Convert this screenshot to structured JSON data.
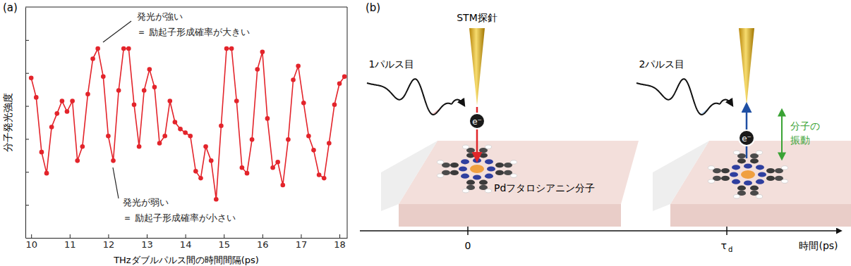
{
  "chart_data": {
    "type": "line",
    "panel_label": "(a)",
    "xlabel": "THzダブルパルス間の時間間隔(ps)",
    "ylabel": "分子発光強度",
    "x": [
      10.0,
      10.13,
      10.27,
      10.4,
      10.53,
      10.67,
      10.8,
      10.93,
      11.07,
      11.2,
      11.33,
      11.47,
      11.6,
      11.73,
      11.87,
      12.0,
      12.13,
      12.27,
      12.4,
      12.53,
      12.67,
      12.8,
      12.93,
      13.07,
      13.2,
      13.33,
      13.47,
      13.6,
      13.73,
      13.87,
      14.0,
      14.13,
      14.27,
      14.4,
      14.53,
      14.67,
      14.8,
      14.93,
      15.07,
      15.2,
      15.33,
      15.47,
      15.6,
      15.73,
      15.87,
      16.0,
      16.13,
      16.27,
      16.4,
      16.53,
      16.67,
      16.8,
      16.93,
      17.07,
      17.2,
      17.33,
      17.47,
      17.6,
      17.73,
      17.87,
      18.0,
      18.13
    ],
    "values": [
      4.85,
      4.26,
      2.6,
      1.96,
      3.36,
      3.77,
      4.15,
      3.83,
      4.15,
      2.34,
      2.77,
      4.36,
      5.43,
      5.74,
      4.89,
      3.09,
      2.34,
      4.47,
      5.74,
      5.74,
      4.04,
      2.77,
      4.47,
      5.11,
      4.57,
      2.87,
      3.09,
      4.15,
      3.51,
      3.3,
      3.19,
      3.09,
      2.02,
      1.81,
      2.77,
      2.34,
      1.17,
      3.4,
      5.74,
      5.74,
      4.15,
      2.13,
      1.96,
      2.98,
      5.11,
      5.64,
      3.62,
      2.13,
      2.3,
      1.6,
      2.98,
      4.79,
      5.21,
      4.09,
      3.09,
      2.66,
      1.91,
      1.81,
      2.87,
      4.04,
      4.68,
      4.89
    ],
    "color": "#e3242b",
    "marker": "circle",
    "line_style": "solid",
    "xlim": [
      9.85,
      18.2
    ],
    "xticks": [
      10,
      11,
      12,
      13,
      14,
      15,
      16,
      17,
      18
    ],
    "ylim": [
      0,
      7
    ],
    "yticks": [
      1,
      2,
      3,
      4,
      5,
      6
    ],
    "tick_labels": "x",
    "annotations": [
      {
        "lines": [
          "発光が強い",
          "＝ 励起子形成確率が大きい"
        ]
      },
      {
        "lines": [
          "発光が弱い",
          "＝ 励起子形成確率が小さい"
        ]
      }
    ]
  },
  "diagram": {
    "panel_label": "(b)",
    "tip_label": "STM探針",
    "pulses": [
      "1パルス目",
      "2パルス目"
    ],
    "molecule_label": "Pdフタロシアニン分子",
    "electron_label": "e⁻",
    "vibration_label": [
      "分子の",
      "振動"
    ],
    "time_axis": {
      "ticks": [
        {
          "main": "0"
        },
        {
          "main": "τ",
          "sub": "d"
        }
      ],
      "label": "時間(ps)"
    }
  }
}
